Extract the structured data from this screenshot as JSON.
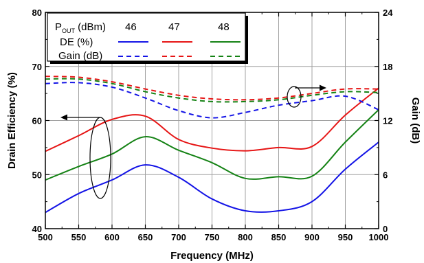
{
  "chart_data": {
    "type": "line",
    "title": "",
    "xlabel": "Frequency (MHz)",
    "ylabel_left": "Drain Efficiency (%)",
    "ylabel_right": "Gain (dB)",
    "xlim": [
      500,
      1000
    ],
    "ylim_left": [
      40,
      80
    ],
    "ylim_right": [
      0,
      24
    ],
    "x_ticks": [
      "500",
      "550",
      "600",
      "650",
      "700",
      "750",
      "800",
      "850",
      "900",
      "950",
      "1000"
    ],
    "y_left_ticks": [
      "40",
      "50",
      "60",
      "70",
      "80"
    ],
    "y_right_ticks": [
      "0",
      "6",
      "12",
      "18",
      "24"
    ],
    "grid": true,
    "legend": {
      "placement": "top-left",
      "header_label": "P",
      "header_subscript": "OUT",
      "header_unit": " (dBm)",
      "levels": [
        "46",
        "47",
        "48"
      ],
      "rows": [
        "DE (%)",
        "Gain (dB)"
      ]
    },
    "colors": {
      "46": "#1414e6",
      "47": "#e61414",
      "48": "#148214"
    },
    "x": [
      500,
      550,
      600,
      650,
      700,
      750,
      800,
      850,
      900,
      950,
      1000
    ],
    "series": [
      {
        "axis": "left",
        "style": "solid",
        "level": "46",
        "values": [
          43,
          46.5,
          49,
          51.8,
          49.5,
          45.5,
          43.3,
          43.3,
          45,
          51,
          56
        ]
      },
      {
        "axis": "left",
        "style": "solid",
        "level": "47",
        "values": [
          54.3,
          57.2,
          60.2,
          60.8,
          56.5,
          54.9,
          54.4,
          55,
          55.2,
          61,
          66
        ]
      },
      {
        "axis": "left",
        "style": "solid",
        "level": "48",
        "values": [
          49,
          51.5,
          53.8,
          57,
          54.5,
          52.2,
          49.3,
          49.6,
          49.7,
          56,
          62
        ]
      },
      {
        "axis": "right",
        "style": "dashed",
        "level": "46",
        "values": [
          16.1,
          16.2,
          15.7,
          14.5,
          13.1,
          12.3,
          12.9,
          13.7,
          14.2,
          14.7,
          13.2
        ]
      },
      {
        "axis": "right",
        "style": "dashed",
        "level": "47",
        "values": [
          16.9,
          16.8,
          16.3,
          15.5,
          14.8,
          14.4,
          14.3,
          14.5,
          15.0,
          15.5,
          15.5
        ]
      },
      {
        "axis": "right",
        "style": "dashed",
        "level": "48",
        "values": [
          16.6,
          16.6,
          16.1,
          15.2,
          14.5,
          14.1,
          14.1,
          14.3,
          14.8,
          15.2,
          15.1
        ]
      }
    ]
  }
}
